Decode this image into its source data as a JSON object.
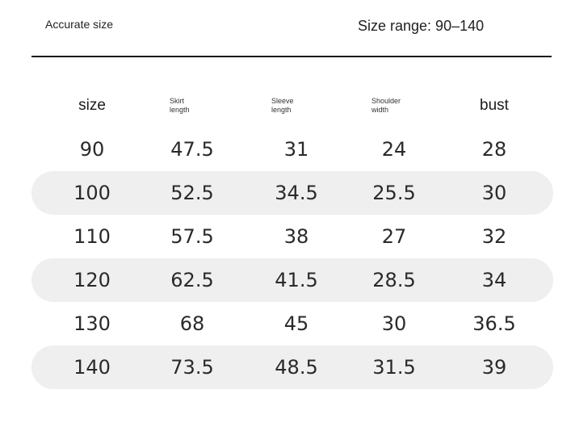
{
  "header": {
    "left_label": "Accurate size",
    "right_label": "Size range: 90–140"
  },
  "table": {
    "columns": [
      {
        "line1": "size",
        "line2": ""
      },
      {
        "line1": "Skirt",
        "line2": "length"
      },
      {
        "line1": "Sleeve",
        "line2": "length"
      },
      {
        "line1": "Shoulder",
        "line2": "width"
      },
      {
        "line1": "bust",
        "line2": ""
      }
    ],
    "rows": [
      [
        "90",
        "47.5",
        "31",
        "24",
        "28"
      ],
      [
        "100",
        "52.5",
        "34.5",
        "25.5",
        "30"
      ],
      [
        "110",
        "57.5",
        "38",
        "27",
        "32"
      ],
      [
        "120",
        "62.5",
        "41.5",
        "28.5",
        "34"
      ],
      [
        "130",
        "68",
        "45",
        "30",
        "36.5"
      ],
      [
        "140",
        "73.5",
        "48.5",
        "31.5",
        "39"
      ]
    ],
    "row_shade_color": "#efefef"
  }
}
